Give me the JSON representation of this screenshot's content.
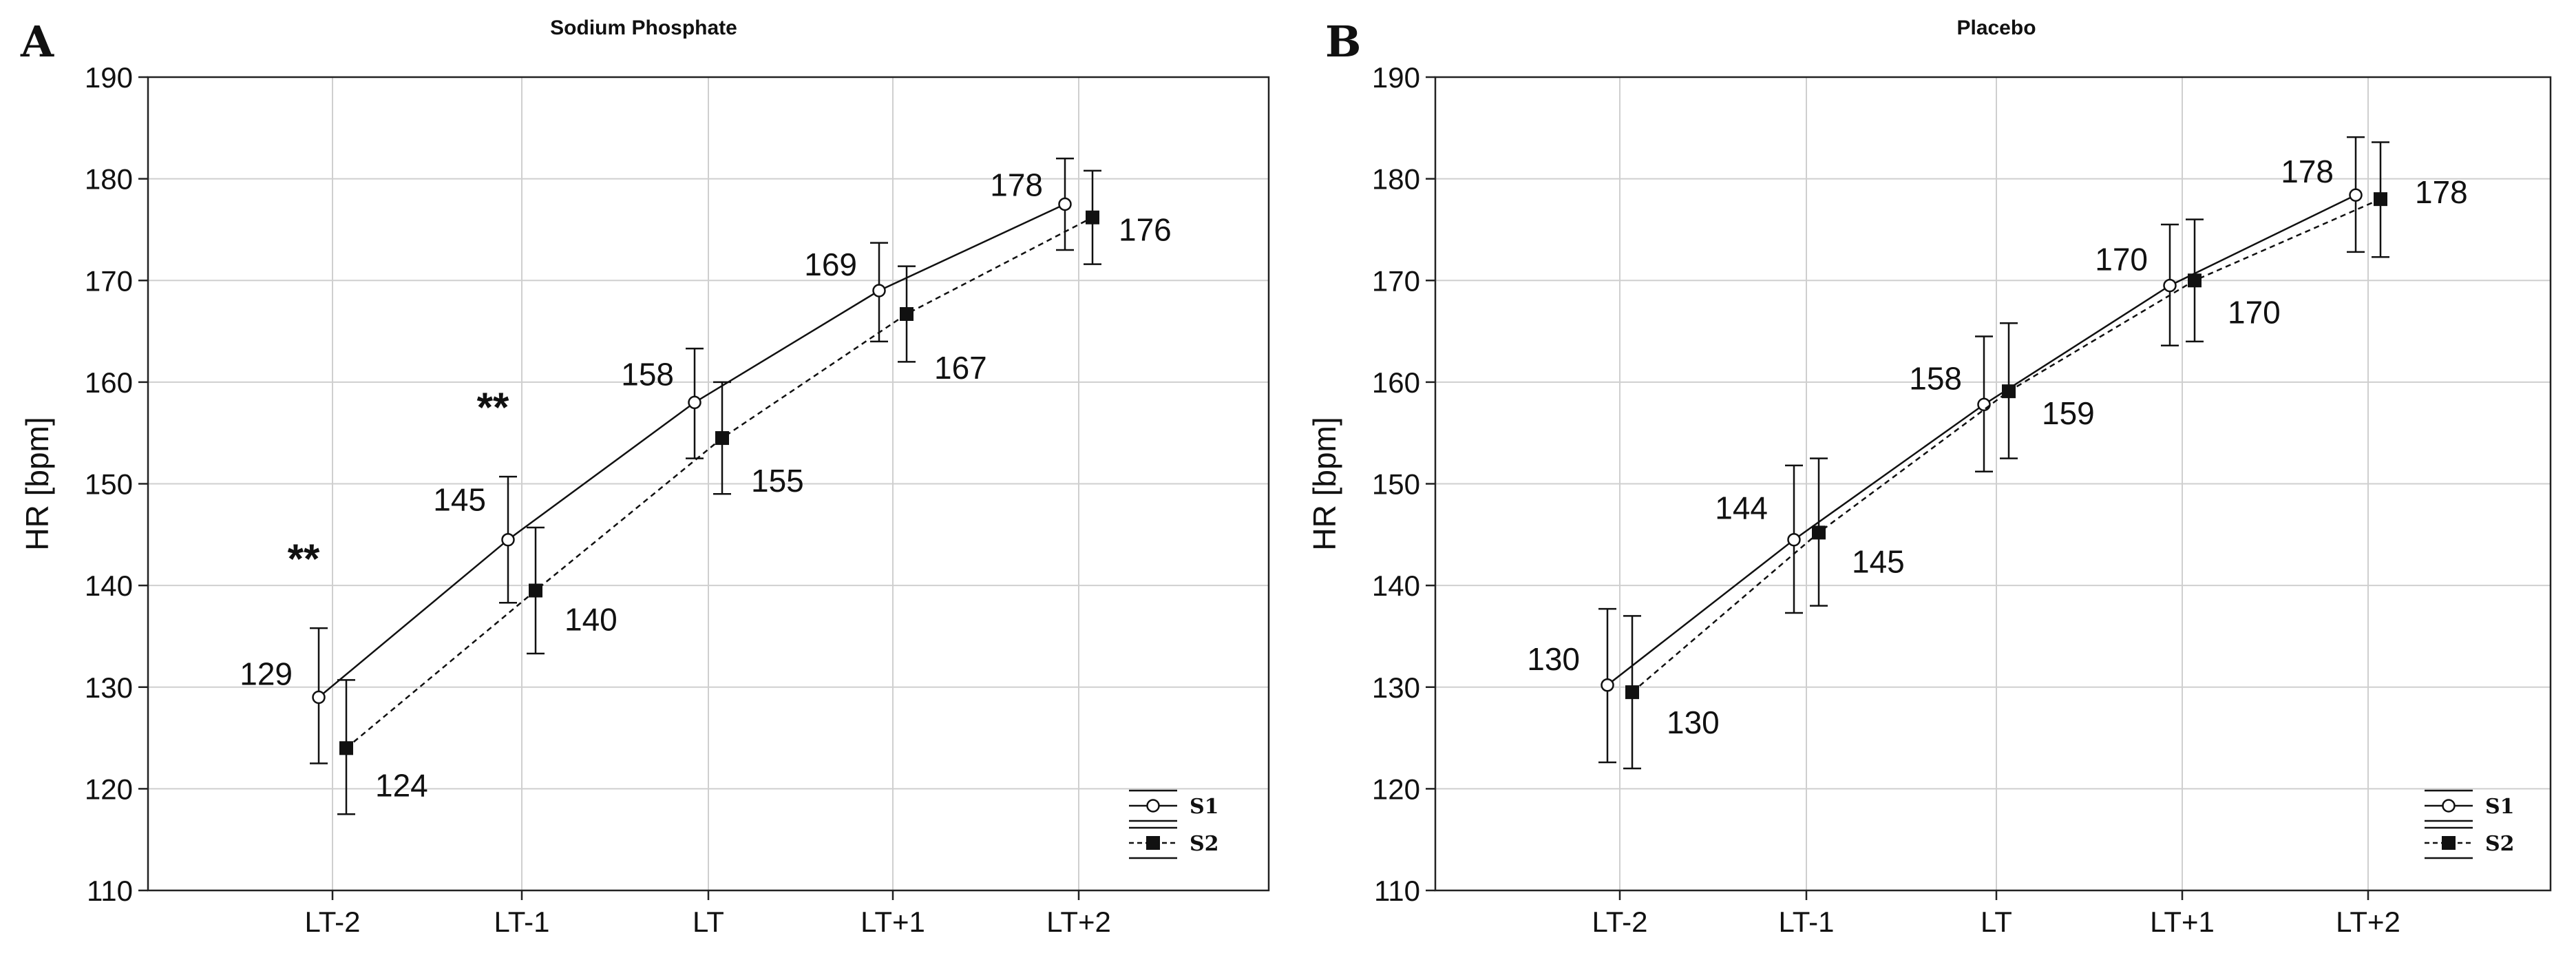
{
  "chart_data": [
    {
      "type": "line",
      "panel": "A",
      "title": "Sodium Phosphate",
      "xlabel": "",
      "ylabel": "HR [bpm]",
      "categories": [
        "LT-2",
        "LT-1",
        "LT",
        "LT+1",
        "LT+2"
      ],
      "ylim": [
        110,
        190
      ],
      "yticks": [
        110,
        120,
        130,
        140,
        150,
        160,
        170,
        180,
        190
      ],
      "grid": true,
      "legend_position": "bottom-right",
      "series": [
        {
          "name": "S1",
          "line_style": "solid",
          "marker": "open-circle",
          "values": [
            129,
            144.5,
            158,
            169,
            177.5
          ],
          "error_low": [
            122.5,
            138.3,
            152.5,
            164,
            173
          ],
          "error_high": [
            135.8,
            150.7,
            163.3,
            173.7,
            182
          ],
          "labels": [
            "129",
            "145",
            "158",
            "169",
            "178"
          ]
        },
        {
          "name": "S2",
          "line_style": "dashed",
          "marker": "filled-square",
          "values": [
            124,
            139.5,
            154.5,
            166.7,
            176.2
          ],
          "error_low": [
            117.5,
            133.3,
            149,
            162,
            171.6
          ],
          "error_high": [
            130.7,
            145.7,
            160,
            171.4,
            180.8
          ],
          "labels": [
            "124",
            "140",
            "155",
            "167",
            "176"
          ]
        }
      ],
      "annotations": [
        {
          "text": "**",
          "category": "LT-2"
        },
        {
          "text": "**",
          "category": "LT-1"
        }
      ]
    },
    {
      "type": "line",
      "panel": "B",
      "title": "Placebo",
      "xlabel": "",
      "ylabel": "HR [bpm]",
      "categories": [
        "LT-2",
        "LT-1",
        "LT",
        "LT+1",
        "LT+2"
      ],
      "ylim": [
        110,
        190
      ],
      "yticks": [
        110,
        120,
        130,
        140,
        150,
        160,
        170,
        180,
        190
      ],
      "grid": true,
      "legend_position": "bottom-right",
      "series": [
        {
          "name": "S1",
          "line_style": "solid",
          "marker": "open-circle",
          "values": [
            130.2,
            144.5,
            157.8,
            169.5,
            178.4
          ],
          "error_low": [
            122.6,
            137.3,
            151.2,
            163.6,
            172.8
          ],
          "error_high": [
            137.7,
            151.8,
            164.5,
            175.5,
            184.1
          ],
          "labels": [
            "130",
            "144",
            "158",
            "170",
            "178"
          ]
        },
        {
          "name": "S2",
          "line_style": "dashed",
          "marker": "filled-square",
          "values": [
            129.5,
            145.2,
            159.1,
            170,
            178
          ],
          "error_low": [
            122,
            138,
            152.5,
            164,
            172.3
          ],
          "error_high": [
            137,
            152.5,
            165.8,
            176,
            183.6
          ],
          "labels": [
            "130",
            "145",
            "159",
            "170",
            "178"
          ]
        }
      ],
      "annotations": []
    }
  ]
}
